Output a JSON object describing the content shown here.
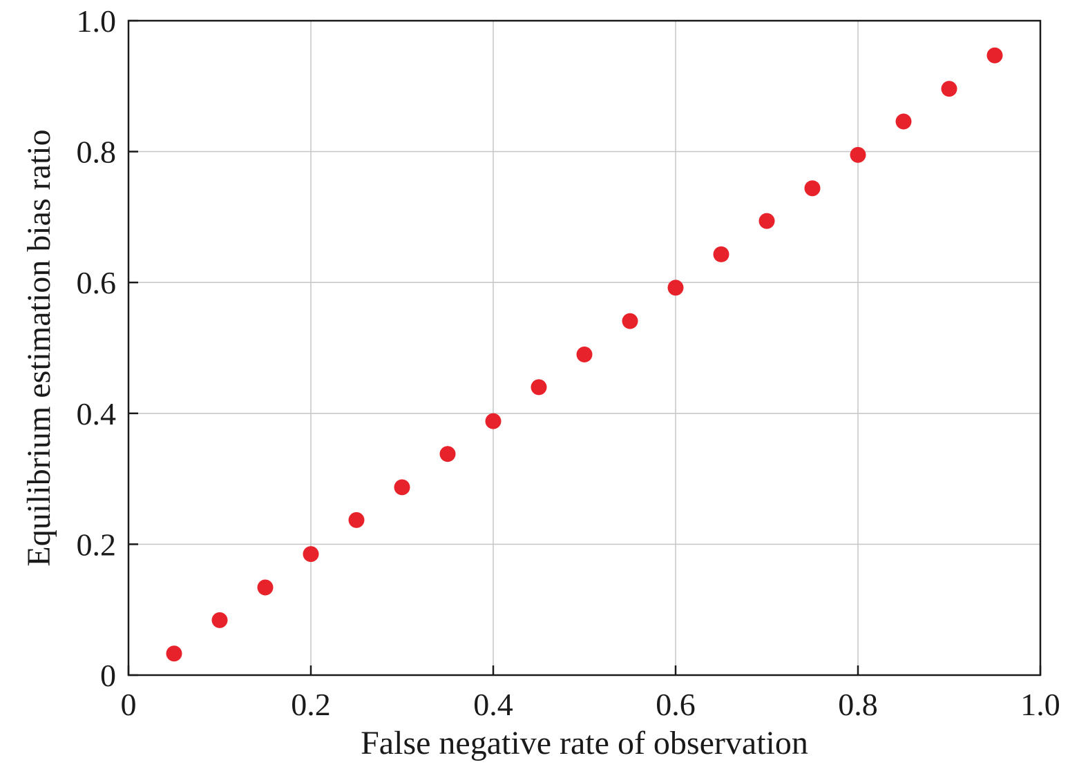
{
  "chart_data": {
    "type": "scatter",
    "title": "",
    "xlabel": "False negative rate of observation",
    "ylabel": "Equilibrium estimation bias ratio",
    "xlim": [
      0,
      1.0
    ],
    "ylim": [
      0,
      1.0
    ],
    "grid": true,
    "x_ticks": [
      {
        "value": 0,
        "label": "0"
      },
      {
        "value": 0.2,
        "label": "0.2"
      },
      {
        "value": 0.4,
        "label": "0.4"
      },
      {
        "value": 0.6,
        "label": "0.6"
      },
      {
        "value": 0.8,
        "label": "0.8"
      },
      {
        "value": 1.0,
        "label": "1.0"
      }
    ],
    "y_ticks": [
      {
        "value": 0,
        "label": "0"
      },
      {
        "value": 0.2,
        "label": "0.2"
      },
      {
        "value": 0.4,
        "label": "0.4"
      },
      {
        "value": 0.6,
        "label": "0.6"
      },
      {
        "value": 0.8,
        "label": "0.8"
      },
      {
        "value": 1.0,
        "label": "1.0"
      }
    ],
    "series": [
      {
        "color": "#e8222a",
        "points": [
          {
            "x": 0.05,
            "y": 0.033
          },
          {
            "x": 0.1,
            "y": 0.084
          },
          {
            "x": 0.15,
            "y": 0.134
          },
          {
            "x": 0.2,
            "y": 0.185
          },
          {
            "x": 0.25,
            "y": 0.237
          },
          {
            "x": 0.3,
            "y": 0.287
          },
          {
            "x": 0.35,
            "y": 0.338
          },
          {
            "x": 0.4,
            "y": 0.388
          },
          {
            "x": 0.45,
            "y": 0.44
          },
          {
            "x": 0.5,
            "y": 0.49
          },
          {
            "x": 0.55,
            "y": 0.541
          },
          {
            "x": 0.6,
            "y": 0.592
          },
          {
            "x": 0.65,
            "y": 0.643
          },
          {
            "x": 0.7,
            "y": 0.694
          },
          {
            "x": 0.75,
            "y": 0.744
          },
          {
            "x": 0.8,
            "y": 0.795
          },
          {
            "x": 0.85,
            "y": 0.846
          },
          {
            "x": 0.9,
            "y": 0.896
          },
          {
            "x": 0.95,
            "y": 0.947
          }
        ]
      }
    ]
  },
  "colors": {
    "grid": "#c8c8c8",
    "axis": "#1a1a1a",
    "marker": "#e8222a"
  }
}
